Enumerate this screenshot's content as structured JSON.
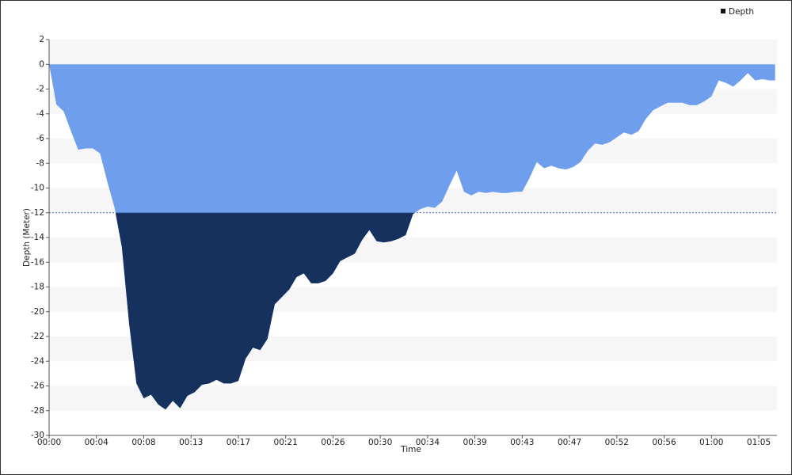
{
  "chart_data": {
    "type": "area",
    "x_label": "Time",
    "y_label": "Depth (Meter)",
    "legend": "top-right",
    "grid": "bands",
    "threshold": -12,
    "threshold_color": "#17315f",
    "threshold_line_color": "#4a6fd0",
    "x": [
      0,
      40,
      80,
      120,
      160,
      200,
      240,
      280,
      320,
      360,
      400,
      440,
      480,
      520,
      560,
      600,
      640,
      680,
      720,
      760,
      800,
      840,
      880,
      920,
      960,
      1000,
      1040,
      1080,
      1120,
      1160,
      1200,
      1240,
      1280,
      1320,
      1360,
      1400,
      1440,
      1480,
      1520,
      1560,
      1600,
      1640,
      1680,
      1720,
      1760,
      1800,
      1840,
      1880,
      1920,
      1960,
      2000,
      2040,
      2080,
      2120,
      2160,
      2200,
      2240,
      2280,
      2320,
      2360,
      2400,
      2440,
      2480,
      2520,
      2560,
      2600,
      2640,
      2680,
      2720,
      2760,
      2800,
      2840,
      2880,
      2920,
      2960,
      3000,
      3040,
      3080,
      3120,
      3160,
      3200,
      3240,
      3280,
      3320,
      3360,
      3400,
      3440,
      3480,
      3520,
      3560,
      3600,
      3640,
      3680,
      3720,
      3760,
      3800,
      3840,
      3880,
      3920,
      3960,
      3990
    ],
    "series": [
      {
        "name": "Depth",
        "color": "#6f9fec",
        "values": [
          0,
          -3.25,
          -3.8,
          -5.4,
          -6.9,
          -6.8,
          -6.8,
          -7.2,
          -9.5,
          -11.6,
          -14.8,
          -21,
          -25.8,
          -27,
          -26.7,
          -27.5,
          -27.9,
          -27.2,
          -27.8,
          -26.8,
          -26.5,
          -25.9,
          -25.8,
          -25.5,
          -25.8,
          -25.8,
          -25.6,
          -23.8,
          -22.9,
          -23.1,
          -22.2,
          -19.4,
          -18.8,
          -18.2,
          -17.2,
          -16.9,
          -17.7,
          -17.7,
          -17.5,
          -16.9,
          -15.9,
          -15.6,
          -15.3,
          -14.2,
          -13.4,
          -14.3,
          -14.4,
          -14.3,
          -14.1,
          -13.8,
          -12.1,
          -11.7,
          -11.5,
          -11.6,
          -11.1,
          -9.8,
          -8.6,
          -10.3,
          -10.6,
          -10.3,
          -10.4,
          -10.3,
          -10.4,
          -10.4,
          -10.3,
          -10.3,
          -9.2,
          -7.9,
          -8.4,
          -8.2,
          -8.4,
          -8.5,
          -8.3,
          -7.9,
          -7.0,
          -6.4,
          -6.5,
          -6.3,
          -5.9,
          -5.5,
          -5.7,
          -5.4,
          -4.4,
          -3.7,
          -3.4,
          -3.1,
          -3.1,
          -3.1,
          -3.3,
          -3.3,
          -3.0,
          -2.6,
          -1.3,
          -1.5,
          -1.8,
          -1.3,
          -0.7,
          -1.3,
          -1.2,
          -1.3,
          -1.3
        ]
      }
    ],
    "xlim": [
      0,
      4000
    ],
    "ylim": [
      -30,
      2
    ],
    "xticks": [
      {
        "value": 0,
        "label": "00:00"
      },
      {
        "value": 260,
        "label": "00:04"
      },
      {
        "value": 520,
        "label": "00:08"
      },
      {
        "value": 780,
        "label": "00:13"
      },
      {
        "value": 1040,
        "label": "00:17"
      },
      {
        "value": 1300,
        "label": "00:21"
      },
      {
        "value": 1560,
        "label": "00:26"
      },
      {
        "value": 1820,
        "label": "00:30"
      },
      {
        "value": 2080,
        "label": "00:34"
      },
      {
        "value": 2340,
        "label": "00:39"
      },
      {
        "value": 2600,
        "label": "00:43"
      },
      {
        "value": 2860,
        "label": "00:47"
      },
      {
        "value": 3120,
        "label": "00:52"
      },
      {
        "value": 3380,
        "label": "00:56"
      },
      {
        "value": 3640,
        "label": "01:00"
      },
      {
        "value": 3900,
        "label": "01:05"
      }
    ],
    "yticks": [
      2,
      0,
      -2,
      -4,
      -6,
      -8,
      -10,
      -12,
      -14,
      -16,
      -18,
      -20,
      -22,
      -24,
      -26,
      -28,
      -30
    ]
  }
}
